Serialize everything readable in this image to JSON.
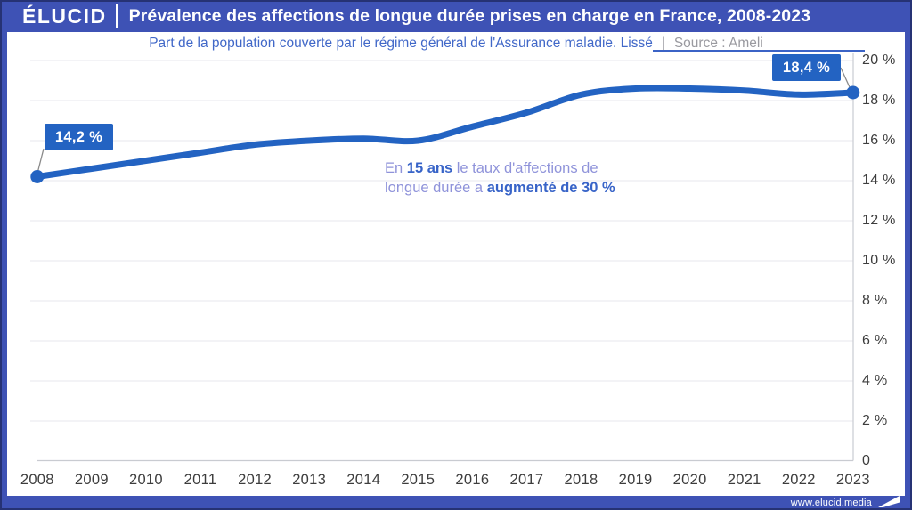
{
  "header": {
    "brand": "ÉLUCID",
    "title": "Prévalence des affections de longue durée prises en charge en France, 2008-2023"
  },
  "subtitle": {
    "text": "Part de la population couverte par le régime général de l'Assurance maladie. Lissé",
    "separator": "|",
    "source": "Source : Ameli"
  },
  "footer": {
    "site": "www.elucid.media",
    "flag_icon": "elucid-flag-icon"
  },
  "colors": {
    "brand_blue": "#3E52B5",
    "line_blue": "#2363C2",
    "subtitle_blue": "#4168C8",
    "annotation_light": "#8F93DA",
    "annotation_strong": "#3864C8",
    "grid": "#ECECF1",
    "axis": "#C9CBD1",
    "tick_text": "#3D3D3D",
    "connector_gray": "#8A8A8A"
  },
  "chart_data": {
    "type": "line",
    "title": "Prévalence des affections de longue durée prises en charge en France, 2008-2023",
    "subtitle": "Part de la population couverte par le régime général de l'Assurance maladie. Lissé",
    "source": "Ameli",
    "xlabel": "",
    "ylabel": "",
    "unit": "%",
    "ylim": [
      0,
      20
    ],
    "grid": true,
    "legend": false,
    "categories": [
      "2008",
      "2009",
      "2010",
      "2011",
      "2012",
      "2013",
      "2014",
      "2015",
      "2016",
      "2017",
      "2018",
      "2019",
      "2020",
      "2021",
      "2022",
      "2023"
    ],
    "values": [
      14.2,
      14.6,
      15.0,
      15.4,
      15.8,
      16.0,
      16.1,
      16.0,
      16.7,
      17.4,
      18.3,
      18.6,
      18.6,
      18.5,
      18.3,
      18.4
    ],
    "yticks": [
      {
        "label": "20 %",
        "value": 20
      },
      {
        "label": "18 %",
        "value": 18
      },
      {
        "label": "16 %",
        "value": 16
      },
      {
        "label": "14 %",
        "value": 14
      },
      {
        "label": "12 %",
        "value": 12
      },
      {
        "label": "10 %",
        "value": 10
      },
      {
        "label": "8 %",
        "value": 8
      },
      {
        "label": "6 %",
        "value": 6
      },
      {
        "label": "4 %",
        "value": 4
      },
      {
        "label": "2 %",
        "value": 2
      },
      {
        "label": "0",
        "value": 0
      }
    ],
    "callouts": {
      "start": {
        "label": "14,2 %",
        "value": 14.2,
        "year": "2008"
      },
      "end": {
        "label": "18,4 %",
        "value": 18.4,
        "year": "2023"
      }
    },
    "annotation": {
      "part1": "En ",
      "part2": "15 ans",
      "part3": " le taux d'affections de longue durée a ",
      "part4": "augmenté de 30 %"
    },
    "colors": {
      "line": "#2363C2",
      "grid": "#ECECF1",
      "axis": "#C9CBD1"
    }
  }
}
